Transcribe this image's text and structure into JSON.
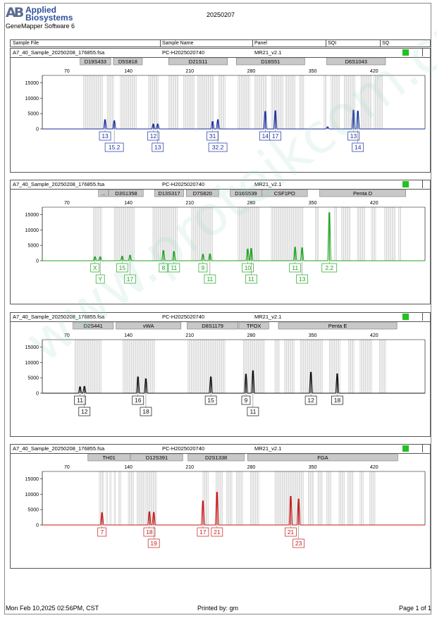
{
  "header": {
    "brand_line1": "Applied",
    "brand_line2": "Biosystems",
    "logo_text": "AB",
    "software": "GeneMapper Software 6",
    "report_date": "20250207",
    "columns": [
      "Sample File",
      "Sample Name",
      "Panel",
      "SQI",
      "SQ"
    ]
  },
  "watermark": "www.proteikcom.cn",
  "footer": {
    "timestamp": "Mon Feb 10,2025 02:56PM, CST",
    "printed_by": "Printed by: gm",
    "page": "Page 1 of 1"
  },
  "chart_data": [
    {
      "type": "electropherogram",
      "sample_file": "A7_40_Sample_20250208_176855.fsa",
      "sample_name": "PC-H2025020740",
      "panel": "MR21_v2.1",
      "color": "#1a2f9e",
      "xticks": [
        70,
        140,
        210,
        280,
        350,
        420
      ],
      "yticks": [
        0,
        5000,
        10000,
        15000
      ],
      "ylim": [
        0,
        16000
      ],
      "loci": [
        {
          "name": "D19S433",
          "start": 85,
          "end": 120
        },
        {
          "name": "D5S818",
          "start": 123,
          "end": 156
        },
        {
          "name": "D21S11",
          "start": 186,
          "end": 253
        },
        {
          "name": "D18S51",
          "start": 263,
          "end": 341
        },
        {
          "name": "D6S1043",
          "start": 366,
          "end": 433
        }
      ],
      "peaks": [
        {
          "x": 113.5,
          "h": 3000
        },
        {
          "x": 124,
          "h": 2700
        },
        {
          "x": 168.5,
          "h": 1600
        },
        {
          "x": 173.5,
          "h": 1600
        },
        {
          "x": 236,
          "h": 2400
        },
        {
          "x": 242,
          "h": 3000
        },
        {
          "x": 296,
          "h": 5700
        },
        {
          "x": 307.5,
          "h": 5900
        },
        {
          "x": 396.5,
          "h": 6100
        },
        {
          "x": 401.5,
          "h": 5800
        },
        {
          "x": 367,
          "h": 700
        }
      ],
      "labels": [
        {
          "text": "13",
          "x": 113.5,
          "row": 1
        },
        {
          "text": "15.2",
          "x": 124,
          "row": 2
        },
        {
          "text": "12",
          "x": 168.5,
          "row": 1
        },
        {
          "text": "13",
          "x": 173.5,
          "row": 2
        },
        {
          "text": "31",
          "x": 236,
          "row": 1
        },
        {
          "text": "32.2",
          "x": 242,
          "row": 2
        },
        {
          "text": "14",
          "x": 296,
          "row": 1
        },
        {
          "text": "17",
          "x": 307.5,
          "row": 1
        },
        {
          "text": "13",
          "x": 396.5,
          "row": 1
        },
        {
          "text": "14",
          "x": 401.5,
          "row": 2
        }
      ],
      "bins": [
        [
          89,
          111
        ],
        [
          116,
          124
        ],
        [
          131,
          150
        ],
        [
          163,
          174
        ],
        [
          186,
          197
        ],
        [
          203,
          216
        ],
        [
          219,
          237
        ],
        [
          243,
          251
        ],
        [
          265,
          279
        ],
        [
          284,
          298
        ],
        [
          303,
          317
        ],
        [
          319,
          330
        ],
        [
          335,
          340
        ],
        [
          363,
          366
        ],
        [
          371,
          381
        ],
        [
          386,
          399
        ],
        [
          405,
          418
        ],
        [
          420,
          430
        ]
      ]
    },
    {
      "type": "electropherogram",
      "sample_file": "A7_40_Sample_20250208_176855.fsa",
      "sample_name": "PC-H2025020740",
      "panel": "MR21_v2.1",
      "color": "#1fa31f",
      "xticks": [
        70,
        140,
        210,
        280,
        350,
        420
      ],
      "yticks": [
        0,
        5000,
        10000,
        15000
      ],
      "ylim": [
        0,
        16000
      ],
      "loci": [
        {
          "name": "...",
          "start": 106,
          "end": 117
        },
        {
          "name": "D3S1358",
          "start": 118,
          "end": 157
        },
        {
          "name": "D13S317",
          "start": 170,
          "end": 203
        },
        {
          "name": "D7S820",
          "start": 206,
          "end": 243
        },
        {
          "name": "D16S539",
          "start": 256,
          "end": 292
        },
        {
          "name": "CSF1PO",
          "start": 292,
          "end": 344
        },
        {
          "name": "Penta D",
          "start": 358,
          "end": 456
        }
      ],
      "peaks": [
        {
          "x": 102,
          "h": 1300
        },
        {
          "x": 108,
          "h": 1300
        },
        {
          "x": 133,
          "h": 1500
        },
        {
          "x": 142,
          "h": 1800
        },
        {
          "x": 180,
          "h": 3300
        },
        {
          "x": 192,
          "h": 3000
        },
        {
          "x": 225,
          "h": 2100
        },
        {
          "x": 233,
          "h": 2200
        },
        {
          "x": 276,
          "h": 3800
        },
        {
          "x": 280,
          "h": 4000
        },
        {
          "x": 330,
          "h": 4400
        },
        {
          "x": 338,
          "h": 4200
        },
        {
          "x": 369,
          "h": 15600
        }
      ],
      "labels": [
        {
          "text": "X",
          "x": 102,
          "row": 1
        },
        {
          "text": "Y",
          "x": 108,
          "row": 2
        },
        {
          "text": "15",
          "x": 133,
          "row": 1
        },
        {
          "text": "17",
          "x": 142,
          "row": 2
        },
        {
          "text": "8",
          "x": 180,
          "row": 1
        },
        {
          "text": "11",
          "x": 192,
          "row": 1
        },
        {
          "text": "9",
          "x": 225,
          "row": 1
        },
        {
          "text": "11",
          "x": 233,
          "row": 2
        },
        {
          "text": "10",
          "x": 276,
          "row": 1
        },
        {
          "text": "11",
          "x": 280,
          "row": 2
        },
        {
          "text": "11",
          "x": 330,
          "row": 1
        },
        {
          "text": "13",
          "x": 338,
          "row": 2
        },
        {
          "text": "2.2",
          "x": 369,
          "row": 1
        }
      ],
      "bins": [
        [
          100,
          110
        ],
        [
          124,
          147
        ],
        [
          168,
          196
        ],
        [
          212,
          236
        ],
        [
          265,
          290
        ],
        [
          303,
          339
        ],
        [
          353,
          357
        ],
        [
          375,
          378
        ],
        [
          383,
          393
        ],
        [
          401,
          410
        ],
        [
          417,
          422
        ],
        [
          432,
          444
        ],
        [
          448,
          451
        ]
      ]
    },
    {
      "type": "electropherogram",
      "sample_file": "A7_40_Sample_20250208_176855.fsa",
      "sample_name": "PC-H2025020740",
      "panel": "MR21_v2.1",
      "color": "#111111",
      "xticks": [
        70,
        140,
        210,
        280,
        350,
        420
      ],
      "yticks": [
        0,
        5000,
        10000,
        15000
      ],
      "ylim": [
        0,
        16000
      ],
      "loci": [
        {
          "name": "D2S441",
          "start": 77,
          "end": 123
        },
        {
          "name": "vWA",
          "start": 126,
          "end": 200
        },
        {
          "name": "D8S1179",
          "start": 207,
          "end": 265
        },
        {
          "name": "TPOX",
          "start": 266,
          "end": 300
        },
        {
          "name": "Penta E",
          "start": 311,
          "end": 446
        }
      ],
      "peaks": [
        {
          "x": 85,
          "h": 2100
        },
        {
          "x": 90,
          "h": 2200
        },
        {
          "x": 151,
          "h": 5300
        },
        {
          "x": 160,
          "h": 4700
        },
        {
          "x": 234,
          "h": 5300
        },
        {
          "x": 274,
          "h": 6200
        },
        {
          "x": 282,
          "h": 7300
        },
        {
          "x": 348,
          "h": 6800
        },
        {
          "x": 378,
          "h": 6300
        }
      ],
      "labels": [
        {
          "text": "11",
          "x": 85,
          "row": 1
        },
        {
          "text": "12",
          "x": 90,
          "row": 2
        },
        {
          "text": "16",
          "x": 151,
          "row": 1
        },
        {
          "text": "18",
          "x": 160,
          "row": 2
        },
        {
          "text": "15",
          "x": 234,
          "row": 1
        },
        {
          "text": "9",
          "x": 274,
          "row": 1
        },
        {
          "text": "11",
          "x": 282,
          "row": 2
        },
        {
          "text": "12",
          "x": 348,
          "row": 1
        },
        {
          "text": "18",
          "x": 378,
          "row": 1
        }
      ],
      "bins": [
        [
          79,
          110
        ],
        [
          134,
          170
        ],
        [
          208,
          251
        ],
        [
          271,
          295
        ],
        [
          307,
          312
        ],
        [
          318,
          329
        ],
        [
          336,
          362
        ],
        [
          369,
          382
        ],
        [
          391,
          398
        ],
        [
          404,
          418
        ],
        [
          426,
          434
        ]
      ]
    },
    {
      "type": "electropherogram",
      "sample_file": "A7_40_Sample_20250208_176855.fsa",
      "sample_name": "PC-H2025020740",
      "panel": "MR21_v2.1",
      "color": "#c41a1a",
      "xticks": [
        70,
        140,
        210,
        280,
        350,
        420
      ],
      "yticks": [
        0,
        5000,
        10000,
        15000
      ],
      "ylim": [
        0,
        16000
      ],
      "loci": [
        {
          "name": "TH01",
          "start": 94,
          "end": 142
        },
        {
          "name": "D12S391",
          "start": 143,
          "end": 202
        },
        {
          "name": "D2S1338",
          "start": 208,
          "end": 272
        },
        {
          "name": "FGA",
          "start": 276,
          "end": 447
        }
      ],
      "peaks": [
        {
          "x": 110,
          "h": 4000
        },
        {
          "x": 164,
          "h": 4300
        },
        {
          "x": 169,
          "h": 4100
        },
        {
          "x": 225,
          "h": 7800
        },
        {
          "x": 241,
          "h": 10600
        },
        {
          "x": 325,
          "h": 9300
        },
        {
          "x": 334,
          "h": 8400
        }
      ],
      "labels": [
        {
          "text": "7",
          "x": 110,
          "row": 1
        },
        {
          "text": "18",
          "x": 164,
          "row": 1
        },
        {
          "text": "19",
          "x": 169,
          "row": 2
        },
        {
          "text": "17",
          "x": 225,
          "row": 1
        },
        {
          "text": "21",
          "x": 241,
          "row": 1
        },
        {
          "text": "21",
          "x": 325,
          "row": 1
        },
        {
          "text": "23",
          "x": 334,
          "row": 2
        }
      ],
      "bins": [
        [
          107,
          113
        ],
        [
          115,
          117
        ],
        [
          119,
          121
        ],
        [
          124,
          126
        ],
        [
          129,
          132
        ],
        [
          140,
          146
        ],
        [
          150,
          159
        ],
        [
          160,
          172
        ],
        [
          225,
          232
        ],
        [
          240,
          248
        ],
        [
          252,
          258
        ],
        [
          263,
          271
        ],
        [
          279,
          289
        ],
        [
          307,
          340
        ],
        [
          345,
          352
        ],
        [
          356,
          361
        ],
        [
          366,
          371
        ],
        [
          380,
          386
        ],
        [
          390,
          396
        ],
        [
          404,
          408
        ],
        [
          415,
          422
        ]
      ]
    }
  ]
}
